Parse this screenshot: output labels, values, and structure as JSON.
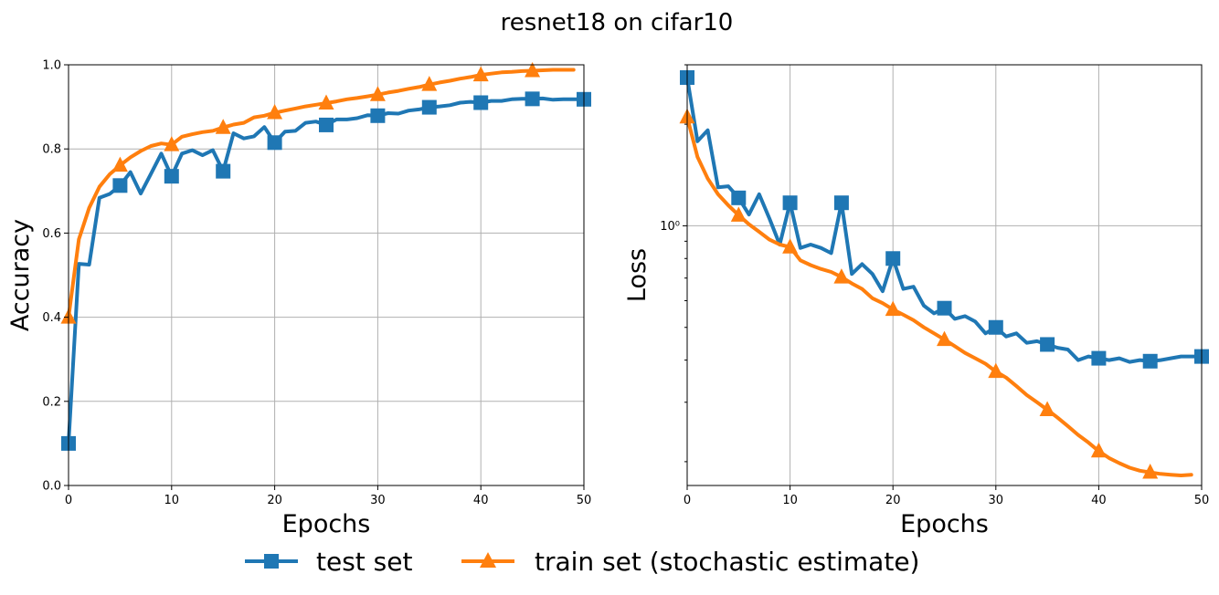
{
  "figure": {
    "title": "resnet18 on cifar10"
  },
  "legend": {
    "placement": "bottom-center",
    "entries": [
      {
        "label": "test set",
        "color": "#1f77b4",
        "marker": "square"
      },
      {
        "label": "train set (stochastic estimate)",
        "color": "#ff7f0e",
        "marker": "triangle"
      }
    ]
  },
  "chart_data": [
    {
      "type": "line",
      "xlabel": "Epochs",
      "ylabel": "Accuracy",
      "xlim": [
        0,
        50
      ],
      "ylim": [
        0,
        1
      ],
      "yscale": "linear",
      "grid": true,
      "xticks": [
        0,
        10,
        20,
        30,
        40,
        50
      ],
      "xtick_labels": [
        "0",
        "10",
        "20",
        "30",
        "40",
        "50"
      ],
      "yticks": [
        0,
        0.2,
        0.4,
        0.6,
        0.8,
        1.0
      ],
      "ytick_labels": [
        "0.0",
        "0.2",
        "0.4",
        "0.6",
        "0.8",
        "1.0"
      ],
      "series": [
        {
          "label": "test set",
          "color": "#1f77b4",
          "marker": "square",
          "markevery": 5,
          "x": [
            0,
            1,
            2,
            3,
            4,
            5,
            6,
            7,
            8,
            9,
            10,
            11,
            12,
            13,
            14,
            15,
            16,
            17,
            18,
            19,
            20,
            21,
            22,
            23,
            24,
            25,
            26,
            27,
            28,
            29,
            30,
            31,
            32,
            33,
            34,
            35,
            36,
            37,
            38,
            39,
            40,
            41,
            42,
            43,
            44,
            45,
            46,
            47,
            48,
            49,
            50
          ],
          "y": [
            0.1,
            0.527,
            0.525,
            0.684,
            0.693,
            0.713,
            0.745,
            0.694,
            0.741,
            0.789,
            0.735,
            0.789,
            0.797,
            0.785,
            0.797,
            0.747,
            0.837,
            0.825,
            0.83,
            0.852,
            0.815,
            0.841,
            0.843,
            0.862,
            0.865,
            0.857,
            0.87,
            0.87,
            0.873,
            0.88,
            0.879,
            0.885,
            0.884,
            0.891,
            0.894,
            0.899,
            0.901,
            0.904,
            0.91,
            0.912,
            0.91,
            0.914,
            0.914,
            0.918,
            0.919,
            0.919,
            0.92,
            0.917,
            0.918,
            0.918,
            0.918
          ]
        },
        {
          "label": "train set (stochastic estimate)",
          "color": "#ff7f0e",
          "marker": "triangle",
          "markevery": 5,
          "x": [
            0,
            1,
            2,
            3,
            4,
            5,
            6,
            7,
            8,
            9,
            10,
            11,
            12,
            13,
            14,
            15,
            16,
            17,
            18,
            19,
            20,
            21,
            22,
            23,
            24,
            25,
            26,
            27,
            28,
            29,
            30,
            31,
            32,
            33,
            34,
            35,
            36,
            37,
            38,
            39,
            40,
            41,
            42,
            43,
            44,
            45,
            46,
            47,
            48,
            49
          ],
          "y": [
            0.4,
            0.585,
            0.66,
            0.71,
            0.74,
            0.761,
            0.78,
            0.795,
            0.807,
            0.813,
            0.81,
            0.829,
            0.835,
            0.84,
            0.843,
            0.851,
            0.858,
            0.862,
            0.875,
            0.879,
            0.886,
            0.891,
            0.896,
            0.901,
            0.905,
            0.909,
            0.913,
            0.918,
            0.921,
            0.925,
            0.929,
            0.934,
            0.938,
            0.943,
            0.947,
            0.953,
            0.958,
            0.962,
            0.967,
            0.971,
            0.976,
            0.979,
            0.982,
            0.983,
            0.985,
            0.986,
            0.987,
            0.988,
            0.988,
            0.988
          ]
        }
      ]
    },
    {
      "type": "line",
      "xlabel": "Epochs",
      "ylabel": "Loss",
      "xlim": [
        0,
        50
      ],
      "ylim": [
        0.17,
        3.0
      ],
      "yscale": "log",
      "grid": true,
      "xticks": [
        0,
        10,
        20,
        30,
        40,
        50
      ],
      "xtick_labels": [
        "0",
        "10",
        "20",
        "30",
        "40",
        "50"
      ],
      "yticks": [
        1
      ],
      "ytick_labels": [
        "10⁰"
      ],
      "minor_yticks": [
        0.2,
        0.3,
        0.4,
        0.5,
        0.6,
        0.7,
        0.8,
        0.9,
        2,
        3
      ],
      "series": [
        {
          "label": "test set",
          "color": "#1f77b4",
          "marker": "square",
          "markevery": 5,
          "x": [
            0,
            1,
            2,
            3,
            4,
            5,
            6,
            7,
            8,
            9,
            10,
            11,
            12,
            13,
            14,
            15,
            16,
            17,
            18,
            19,
            20,
            21,
            22,
            23,
            24,
            25,
            26,
            27,
            28,
            29,
            30,
            31,
            32,
            33,
            34,
            35,
            36,
            37,
            38,
            39,
            40,
            41,
            42,
            43,
            44,
            45,
            46,
            47,
            48,
            49,
            50
          ],
          "y": [
            2.75,
            1.78,
            1.92,
            1.3,
            1.31,
            1.21,
            1.08,
            1.24,
            1.05,
            0.88,
            1.17,
            0.86,
            0.88,
            0.86,
            0.83,
            1.17,
            0.72,
            0.77,
            0.72,
            0.64,
            0.8,
            0.65,
            0.66,
            0.58,
            0.55,
            0.57,
            0.53,
            0.54,
            0.52,
            0.48,
            0.5,
            0.47,
            0.48,
            0.45,
            0.455,
            0.445,
            0.435,
            0.43,
            0.4,
            0.41,
            0.405,
            0.4,
            0.405,
            0.395,
            0.4,
            0.397,
            0.4,
            0.405,
            0.41,
            0.41,
            0.41
          ]
        },
        {
          "label": "train set (stochastic estimate)",
          "color": "#ff7f0e",
          "marker": "triangle",
          "markevery": 5,
          "x": [
            0,
            1,
            2,
            3,
            4,
            5,
            6,
            7,
            8,
            9,
            10,
            11,
            12,
            13,
            14,
            15,
            16,
            17,
            18,
            19,
            20,
            21,
            22,
            23,
            24,
            25,
            26,
            27,
            28,
            29,
            30,
            31,
            32,
            33,
            34,
            35,
            36,
            37,
            38,
            39,
            40,
            41,
            42,
            43,
            44,
            45,
            46,
            47,
            48,
            49
          ],
          "y": [
            2.1,
            1.6,
            1.38,
            1.24,
            1.15,
            1.075,
            1.01,
            0.96,
            0.91,
            0.88,
            0.865,
            0.79,
            0.765,
            0.745,
            0.73,
            0.705,
            0.675,
            0.65,
            0.61,
            0.59,
            0.565,
            0.545,
            0.525,
            0.5,
            0.48,
            0.46,
            0.44,
            0.42,
            0.405,
            0.39,
            0.37,
            0.355,
            0.335,
            0.315,
            0.3,
            0.285,
            0.27,
            0.255,
            0.24,
            0.228,
            0.215,
            0.205,
            0.198,
            0.192,
            0.188,
            0.186,
            0.184,
            0.183,
            0.182,
            0.183
          ]
        }
      ]
    }
  ]
}
